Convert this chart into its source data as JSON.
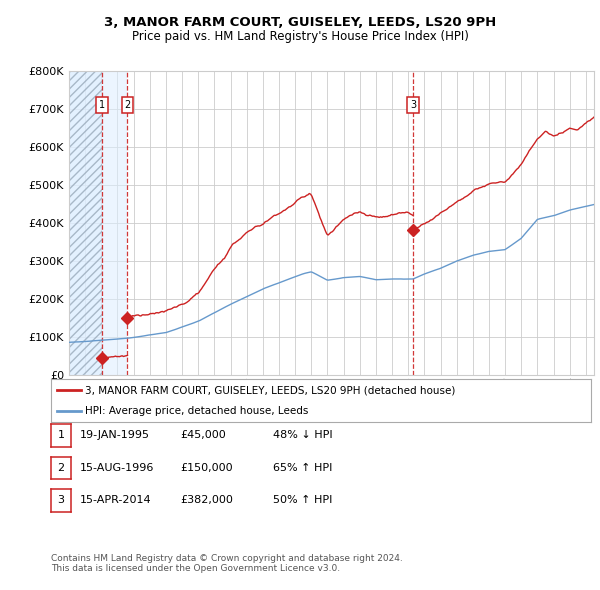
{
  "title1": "3, MANOR FARM COURT, GUISELEY, LEEDS, LS20 9PH",
  "title2": "Price paid vs. HM Land Registry's House Price Index (HPI)",
  "legend_line1": "3, MANOR FARM COURT, GUISELEY, LEEDS, LS20 9PH (detached house)",
  "legend_line2": "HPI: Average price, detached house, Leeds",
  "transactions": [
    {
      "num": 1,
      "date_label": "19-JAN-1995",
      "price": 45000,
      "pct": "48%",
      "dir": "↓",
      "date_year": 1995.05
    },
    {
      "num": 2,
      "date_label": "15-AUG-1996",
      "price": 150000,
      "pct": "65%",
      "dir": "↑",
      "date_year": 1996.62
    },
    {
      "num": 3,
      "date_label": "15-APR-2014",
      "price": 382000,
      "pct": "50%",
      "dir": "↑",
      "date_year": 2014.29
    }
  ],
  "table_rows": [
    {
      "num": 1,
      "date": "19-JAN-1995",
      "price": "£45,000",
      "pct": "48% ↓ HPI"
    },
    {
      "num": 2,
      "date": "15-AUG-1996",
      "price": "£150,000",
      "pct": "65% ↑ HPI"
    },
    {
      "num": 3,
      "date": "15-APR-2014",
      "price": "£382,000",
      "pct": "50% ↑ HPI"
    }
  ],
  "footnote": "Contains HM Land Registry data © Crown copyright and database right 2024.\nThis data is licensed under the Open Government Licence v3.0.",
  "hpi_color": "#6699cc",
  "price_color": "#cc2222",
  "dot_color": "#cc2222",
  "vline_color": "#cc2222",
  "ylim": [
    0,
    800000
  ],
  "xlim_start": 1993.0,
  "xlim_end": 2025.5,
  "background_color": "#ffffff",
  "grid_color": "#cccccc"
}
